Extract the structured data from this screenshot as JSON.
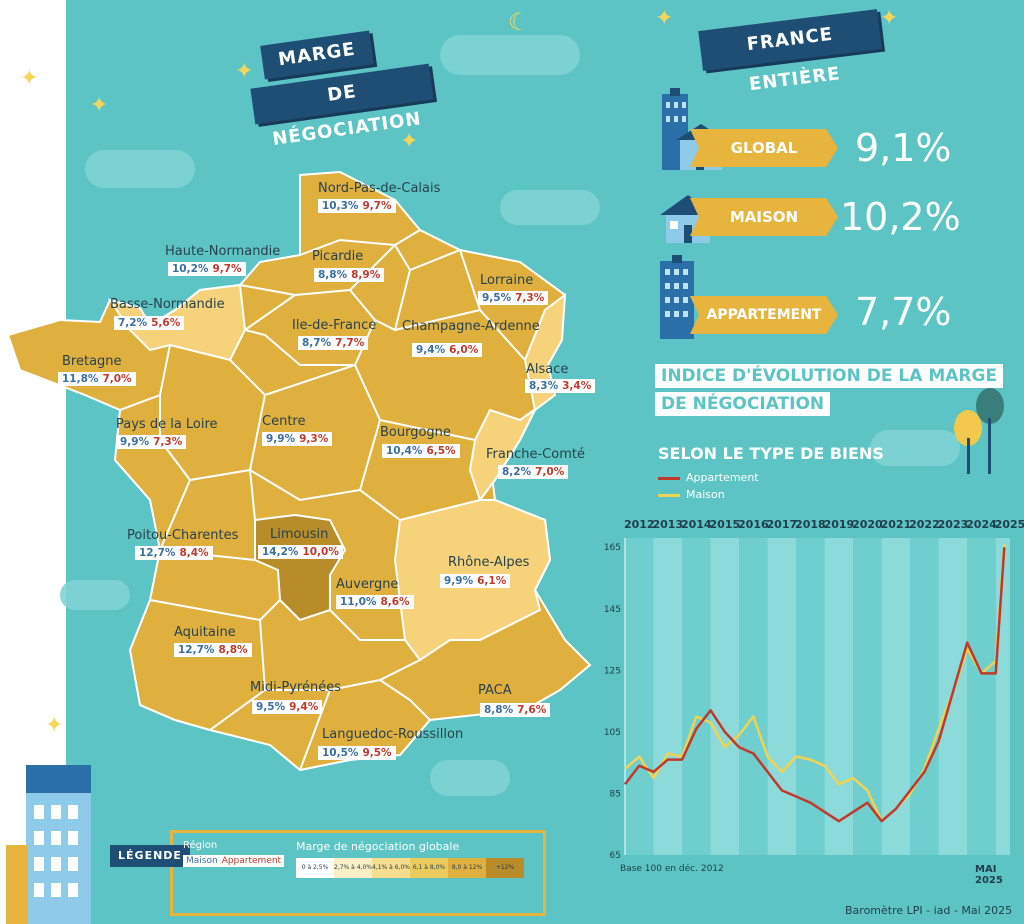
{
  "title": {
    "line1": "MARGE",
    "line2": "DE NÉGOCIATION"
  },
  "france_title": "FRANCE ENTIÈRE",
  "types": [
    {
      "label": "GLOBAL",
      "value": "9,1%"
    },
    {
      "label": "MAISON",
      "value": "10,2%"
    },
    {
      "label": "APPARTEMENT",
      "value": "7,7%"
    }
  ],
  "index": {
    "title_line1": "INDICE D'ÉVOLUTION DE LA MARGE",
    "title_line2": "DE NÉGOCIATION",
    "subtitle": "SELON LE TYPE DE BIENS",
    "legend_appartement": "Appartement",
    "legend_maison": "Maison",
    "base_note": "Base 100 en déc. 2012",
    "date_note": "MAI 2025"
  },
  "regions": [
    {
      "name": "Nord-Pas-de-Calais",
      "maison": "10,3%",
      "appart": "9,7%"
    },
    {
      "name": "Haute-Normandie",
      "maison": "10,2%",
      "appart": "9,7%"
    },
    {
      "name": "Picardie",
      "maison": "8,8%",
      "appart": "8,9%"
    },
    {
      "name": "Lorraine",
      "maison": "9,5%",
      "appart": "7,3%"
    },
    {
      "name": "Basse-Normandie",
      "maison": "7,2%",
      "appart": "5,6%"
    },
    {
      "name": "Ile-de-France",
      "maison": "8,7%",
      "appart": "7,7%"
    },
    {
      "name": "Champagne-Ardenne",
      "maison": "9,4%",
      "appart": "6,0%"
    },
    {
      "name": "Bretagne",
      "maison": "11,8%",
      "appart": "7,0%"
    },
    {
      "name": "Alsace",
      "maison": "8,3%",
      "appart": "3,4%"
    },
    {
      "name": "Pays de la Loire",
      "maison": "9,9%",
      "appart": "7,3%"
    },
    {
      "name": "Centre",
      "maison": "9,9%",
      "appart": "9,3%"
    },
    {
      "name": "Bourgogne",
      "maison": "10,4%",
      "appart": "6,5%"
    },
    {
      "name": "Franche-Comté",
      "maison": "8,2%",
      "appart": "7,0%"
    },
    {
      "name": "Poitou-Charentes",
      "maison": "12,7%",
      "appart": "8,4%"
    },
    {
      "name": "Limousin",
      "maison": "14,2%",
      "appart": "10,0%"
    },
    {
      "name": "Rhône-Alpes",
      "maison": "9,9%",
      "appart": "6,1%"
    },
    {
      "name": "Auvergne",
      "maison": "11,0%",
      "appart": "8,6%"
    },
    {
      "name": "Aquitaine",
      "maison": "12,7%",
      "appart": "8,8%"
    },
    {
      "name": "PACA",
      "maison": "8,8%",
      "appart": "7,6%"
    },
    {
      "name": "Midi-Pyrénées",
      "maison": "9,5%",
      "appart": "9,4%"
    },
    {
      "name": "Languedoc-Roussillon",
      "maison": "10,5%",
      "appart": "9,5%"
    }
  ],
  "legend": {
    "label": "LÉGENDE",
    "region": "Région",
    "maison": "Maison",
    "appartement": "Appartement",
    "scale_title": "Marge de négociation globale",
    "scale": [
      "0 à 2,5%",
      "2,7% à 4,0%",
      "4,1% à 6,0%",
      "6,1 à 8,0%",
      "8,0 à 12%",
      "+12%"
    ],
    "scale_colors": [
      "#ffffff",
      "#fbeec4",
      "#f6dc8c",
      "#eccb5e",
      "#e0b03e",
      "#b88c28"
    ]
  },
  "source": "Baromètre LPI - iad - Mai 2025",
  "colors": {
    "appartement": "#c0392b",
    "maison": "#f2d34f",
    "map_main": "#e0b03e",
    "map_light": "#f6d27a",
    "map_dark": "#b88c28",
    "ribbon": "#1f4e74"
  },
  "chart_data": {
    "type": "line",
    "title": "",
    "xlabel": "",
    "ylabel": "",
    "x_tick_labels": [
      "2012",
      "2013",
      "2014",
      "2015",
      "2016",
      "2017",
      "2018",
      "2019",
      "2020",
      "2021",
      "2022",
      "2023",
      "2024",
      "2025"
    ],
    "y_ticks": [
      65,
      85,
      105,
      125,
      145,
      165
    ],
    "ylim": [
      65,
      168
    ],
    "grid": "alternating vertical bands per year",
    "series": [
      {
        "name": "Appartement",
        "color": "#c0392b",
        "x": [
          2012.0,
          2012.5,
          2013.0,
          2013.5,
          2014.0,
          2014.5,
          2015.0,
          2015.5,
          2016.0,
          2016.5,
          2017.0,
          2017.5,
          2018.0,
          2018.5,
          2019.0,
          2019.5,
          2020.0,
          2020.5,
          2021.0,
          2021.5,
          2022.0,
          2022.5,
          2023.0,
          2023.5,
          2024.0,
          2024.5,
          2025.0,
          2025.3
        ],
        "values": [
          88,
          94,
          92,
          96,
          96,
          106,
          112,
          105,
          100,
          98,
          92,
          86,
          84,
          82,
          79,
          76,
          79,
          82,
          76,
          80,
          86,
          92,
          102,
          118,
          134,
          124,
          124,
          165
        ]
      },
      {
        "name": "Maison",
        "color": "#f2d34f",
        "x": [
          2012.0,
          2012.5,
          2013.0,
          2013.5,
          2014.0,
          2014.5,
          2015.0,
          2015.5,
          2016.0,
          2016.5,
          2017.0,
          2017.5,
          2018.0,
          2018.5,
          2019.0,
          2019.5,
          2020.0,
          2020.5,
          2021.0,
          2021.5,
          2022.0,
          2022.5,
          2023.0,
          2023.5,
          2024.0,
          2024.5,
          2025.0,
          2025.3
        ],
        "values": [
          93,
          97,
          90,
          98,
          97,
          110,
          108,
          100,
          104,
          110,
          97,
          92,
          97,
          96,
          94,
          88,
          90,
          86,
          76,
          80,
          85,
          93,
          106,
          118,
          132,
          124,
          128,
          166
        ]
      }
    ]
  }
}
